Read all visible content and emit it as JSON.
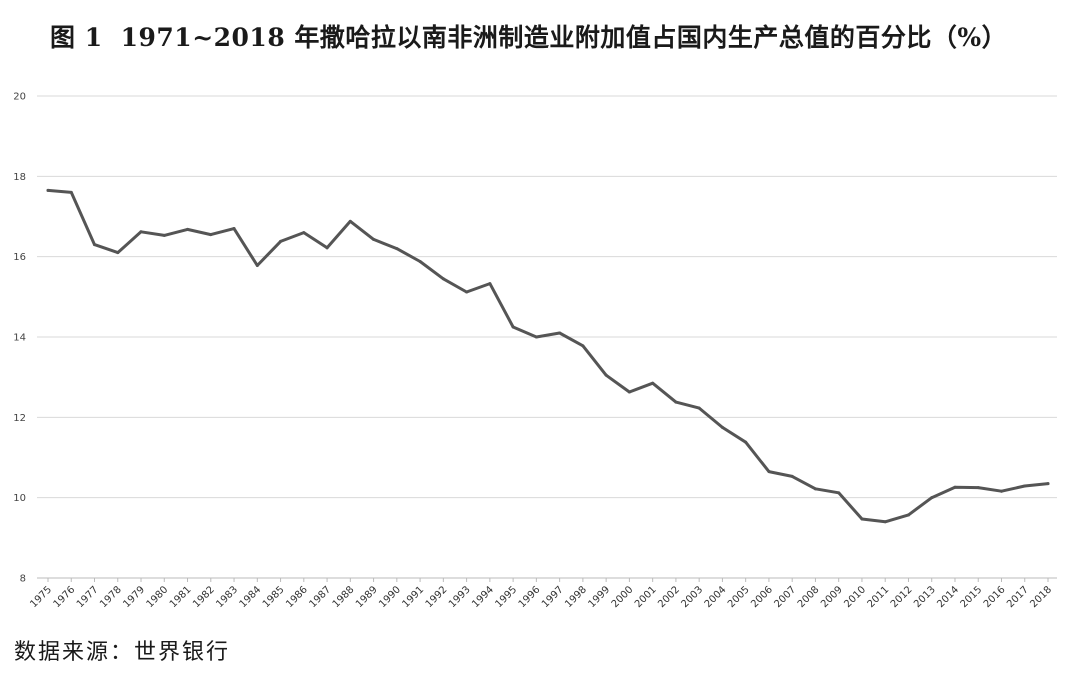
{
  "title": {
    "fig_label": "图 1",
    "text": "1971~2018 年撒哈拉以南非洲制造业附加值占国内生产总值的百分比（%）"
  },
  "source": "数据来源：世界银行",
  "chart_data": {
    "type": "line",
    "x": [
      "1975",
      "1976",
      "1977",
      "1978",
      "1979",
      "1980",
      "1981",
      "1982",
      "1983",
      "1984",
      "1985",
      "1986",
      "1987",
      "1988",
      "1989",
      "1990",
      "1991",
      "1992",
      "1993",
      "1994",
      "1995",
      "1996",
      "1997",
      "1998",
      "1999",
      "2000",
      "2001",
      "2002",
      "2003",
      "2004",
      "2005",
      "2006",
      "2007",
      "2008",
      "2009",
      "2010",
      "2011",
      "2012",
      "2013",
      "2014",
      "2015",
      "2016",
      "2017",
      "2018"
    ],
    "series": [
      {
        "values": [
          17.65,
          17.6,
          16.3,
          16.1,
          16.62,
          16.53,
          16.68,
          16.55,
          16.7,
          15.78,
          16.38,
          16.6,
          16.22,
          16.88,
          16.43,
          16.2,
          15.88,
          15.45,
          15.12,
          15.33,
          14.25,
          14.0,
          14.1,
          13.78,
          13.05,
          12.63,
          12.85,
          12.38,
          12.23,
          11.75,
          11.38,
          10.65,
          10.53,
          10.22,
          10.12,
          9.47,
          9.4,
          9.57,
          10.0,
          10.26,
          10.25,
          10.16,
          10.29,
          10.35
        ],
        "color": "#555555"
      }
    ],
    "ylim": [
      8,
      20
    ],
    "yticks": [
      "8",
      "10",
      "12",
      "14",
      "16",
      "18",
      "20"
    ],
    "grid": true,
    "xlabel": "",
    "ylabel": ""
  }
}
